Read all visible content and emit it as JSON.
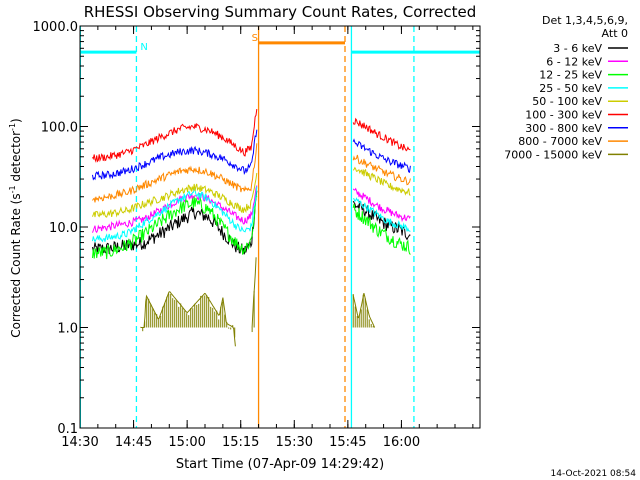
{
  "chart_data": {
    "type": "line",
    "title": "RHESSI Observing Summary Count Rates, Corrected",
    "xlabel": "Start Time (07-Apr-09 14:29:42)",
    "ylabel_main": "Corrected Count Rate (s",
    "ylabel_exp1": "-1",
    "ylabel_mid": " detector",
    "ylabel_exp2": "-1",
    "ylabel_end": ")",
    "y_scale": "log",
    "ylim": [
      0.1,
      1000
    ],
    "xlim_minutes": [
      870,
      982
    ],
    "y_ticks": [
      {
        "value": 0.1,
        "label": "0.1"
      },
      {
        "value": 1,
        "label": "1.0"
      },
      {
        "value": 10,
        "label": "10.0"
      },
      {
        "value": 100,
        "label": "100.0"
      },
      {
        "value": 1000,
        "label": "1000.0"
      }
    ],
    "x_ticks": [
      {
        "value": 870,
        "label": "14:30"
      },
      {
        "value": 885,
        "label": "14:45"
      },
      {
        "value": 900,
        "label": "15:00"
      },
      {
        "value": 915,
        "label": "15:15"
      },
      {
        "value": 930,
        "label": "15:30"
      },
      {
        "value": 945,
        "label": "15:45"
      },
      {
        "value": 960,
        "label": "16:00"
      }
    ],
    "legend_header": [
      "Det 1,3,4,5,6,9,",
      "Att 0"
    ],
    "legend_position": "right",
    "series": [
      {
        "name": "3 - 6 keV",
        "color": "#000000",
        "segments": [
          {
            "x": [
              873.5,
              878,
              883,
              888,
              893,
              898,
              902,
              906,
              910,
              914,
              916,
              918,
              919.5
            ],
            "y": [
              6.0,
              6.1,
              6.5,
              7.0,
              8.8,
              11.5,
              14,
              12.5,
              8.8,
              6.2,
              5.7,
              7.0,
              24
            ]
          },
          {
            "x": [
              946.5,
              950,
              953,
              956,
              959,
              962.5
            ],
            "y": [
              17,
              14.5,
              12,
              10.5,
              9.5,
              8.3
            ]
          }
        ]
      },
      {
        "name": "6 - 12 keV",
        "color": "#ff00ff",
        "segments": [
          {
            "x": [
              873.5,
              878,
              883,
              888,
              893,
              898,
              902,
              906,
              910,
              914,
              916,
              918,
              919.5
            ],
            "y": [
              9.5,
              10,
              10.8,
              12,
              15,
              19,
              21,
              19,
              15.5,
              12.5,
              11.5,
              13,
              26
            ]
          },
          {
            "x": [
              946.5,
              950,
              953,
              956,
              959,
              962.5
            ],
            "y": [
              23,
              19.5,
              16.5,
              14.5,
              13,
              12
            ]
          }
        ]
      },
      {
        "name": "12 - 25 keV",
        "color": "#00ff00",
        "segments": [
          {
            "x": [
              873.5,
              878,
              883,
              888,
              893,
              898,
              902,
              906,
              910,
              914,
              916,
              918,
              919.5
            ],
            "y": [
              5.5,
              5.6,
              6.5,
              8.5,
              11.5,
              15.5,
              17.5,
              15,
              10,
              6.8,
              6.0,
              7.5,
              22
            ]
          },
          {
            "x": [
              946.5,
              950,
              953,
              956,
              959,
              962.5
            ],
            "y": [
              15,
              12,
              9.5,
              8.2,
              7.0,
              6.2
            ]
          }
        ]
      },
      {
        "name": "25 - 50 keV",
        "color": "#00ffff",
        "segments": [
          {
            "x": [
              873.5,
              878,
              883,
              888,
              893,
              898,
              902,
              906,
              910,
              914,
              916,
              918,
              919.5
            ],
            "y": [
              7.5,
              7.8,
              8.5,
              11,
              14.5,
              19,
              22,
              19,
              14,
              10,
              9.0,
              10,
              24
            ]
          },
          {
            "x": [
              946.5,
              950,
              953,
              956,
              959,
              962.5
            ],
            "y": [
              19,
              16,
              13.5,
              11.5,
              10.5,
              9.5
            ]
          }
        ]
      },
      {
        "name": "50 - 100 keV",
        "color": "#cccc00",
        "segments": [
          {
            "x": [
              873.5,
              878,
              883,
              888,
              893,
              898,
              902,
              906,
              910,
              914,
              916,
              918,
              919.5
            ],
            "y": [
              13,
              13.5,
              14.5,
              17,
              19.5,
              23,
              25,
              23,
              19.5,
              16,
              15,
              17,
              34
            ]
          },
          {
            "x": [
              946.5,
              950,
              953,
              956,
              959,
              962.5
            ],
            "y": [
              40,
              34,
              30,
              26,
              24,
              22
            ]
          }
        ]
      },
      {
        "name": "100 - 300 keV",
        "color": "#ff0000",
        "segments": [
          {
            "x": [
              873.5,
              878,
              883,
              888,
              893,
              898,
              902,
              906,
              910,
              914,
              916,
              918,
              919.5
            ],
            "y": [
              48,
              50,
              55,
              65,
              80,
              95,
              100,
              92,
              78,
              62,
              55,
              62,
              160
            ]
          },
          {
            "x": [
              946.5,
              950,
              953,
              956,
              959,
              962.5
            ],
            "y": [
              115,
              100,
              85,
              75,
              65,
              57
            ]
          }
        ]
      },
      {
        "name": "300 - 800 keV",
        "color": "#0000ff",
        "segments": [
          {
            "x": [
              873.5,
              878,
              883,
              888,
              893,
              898,
              902,
              906,
              910,
              914,
              916,
              918,
              919.5
            ],
            "y": [
              32,
              33,
              36,
              42,
              50,
              56,
              58,
              54,
              48,
              40,
              36,
              40,
              100
            ]
          },
          {
            "x": [
              946.5,
              950,
              953,
              956,
              959,
              962.5
            ],
            "y": [
              70,
              60,
              52,
              46,
              42,
              38
            ]
          }
        ]
      },
      {
        "name": "800 - 7000 keV",
        "color": "#ff8800",
        "segments": [
          {
            "x": [
              873.5,
              878,
              883,
              888,
              893,
              898,
              902,
              906,
              910,
              914,
              916,
              918,
              919.5
            ],
            "y": [
              19,
              20,
              22,
              26,
              31,
              36,
              38,
              35,
              30,
              25,
              22.5,
              25,
              65
            ]
          },
          {
            "x": [
              946.5,
              950,
              953,
              956,
              959,
              962.5
            ],
            "y": [
              50,
              43,
              38,
              34,
              31,
              28
            ]
          }
        ]
      },
      {
        "name": "7000 - 15000 keV",
        "color": "#808000",
        "segments": [
          {
            "x": [
              887,
              888,
              888.5,
              892,
              895,
              900,
              905,
              909,
              910,
              911,
              913,
              913.5
            ],
            "y": [
              1.0,
              1.0,
              2.1,
              1.2,
              2.3,
              1.4,
              2.2,
              1.3,
              2.0,
              1.1,
              1.0,
              0.65
            ]
          },
          {
            "x": [
              918.2,
              918.6,
              919.0,
              919.3
            ],
            "y": [
              1.0,
              1.9,
              3.0,
              5.0
            ]
          },
          {
            "x": [
              946.5,
              948,
              949.5,
              951,
              952.5
            ],
            "y": [
              2.1,
              1.2,
              2.2,
              1.3,
              1.0
            ]
          }
        ]
      }
    ],
    "flags": [
      {
        "label": "N",
        "color": "#00ffff",
        "level": 550,
        "start": 870,
        "end": 885.8,
        "style": "solid"
      },
      {
        "label": "",
        "color": "#00ffff",
        "level": 550,
        "start": 946,
        "end": 982,
        "style": "solid"
      },
      {
        "label": "S",
        "color": "#ff8800",
        "level": 680,
        "start": 920,
        "end": 944.2,
        "style": "solid"
      }
    ],
    "vlines": [
      {
        "x": 870.1,
        "color": "#00ffff",
        "style": "solid"
      },
      {
        "x": 885.8,
        "color": "#00ffff",
        "style": "dashed"
      },
      {
        "x": 920,
        "color": "#ff8800",
        "style": "solid"
      },
      {
        "x": 944.2,
        "color": "#ff8800",
        "style": "dashed"
      },
      {
        "x": 946,
        "color": "#00ffff",
        "style": "solid"
      },
      {
        "x": 963.5,
        "color": "#00ffff",
        "style": "dashed"
      }
    ]
  },
  "footer_timestamp": "14-Oct-2021 08:54"
}
